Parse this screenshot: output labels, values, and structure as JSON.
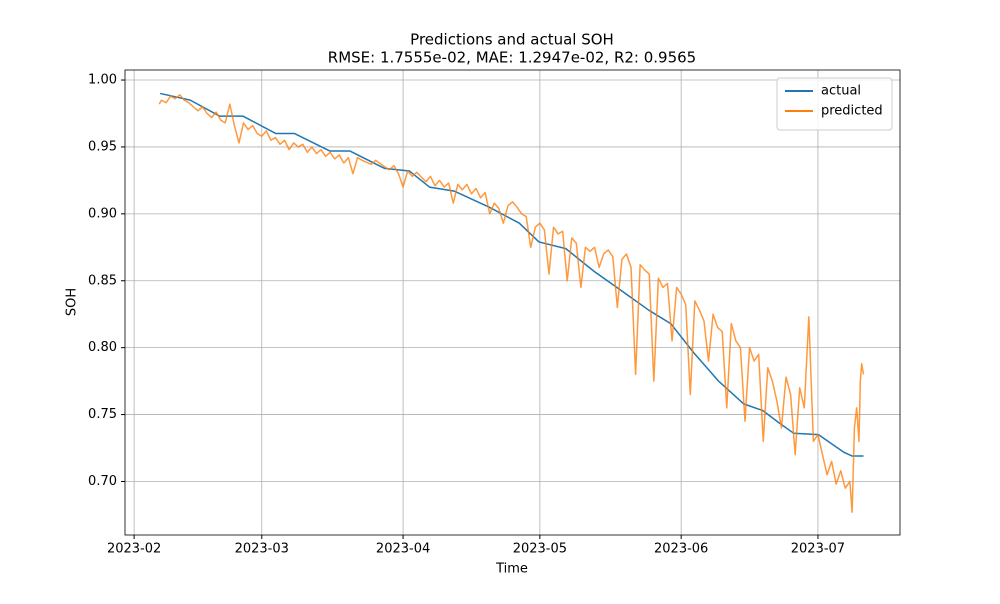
{
  "chart_data": {
    "type": "line",
    "title": "Predictions and actual SOH",
    "subtitle": "RMSE: 1.7555e-02, MAE: 1.2947e-02, R2: 0.9565",
    "x_label": "Time",
    "y_label": "SOH",
    "grid": true,
    "legend": "upper right",
    "xlim": [
      -2,
      168
    ],
    "xticks": [
      {
        "value": 0,
        "label": "2023-02"
      },
      {
        "value": 28,
        "label": "2023-03"
      },
      {
        "value": 59,
        "label": "2023-04"
      },
      {
        "value": 89,
        "label": "2023-05"
      },
      {
        "value": 120,
        "label": "2023-06"
      },
      {
        "value": 150,
        "label": "2023-07"
      }
    ],
    "ylim": [
      0.66,
      1.0075
    ],
    "yticks": [
      {
        "value": 0.7,
        "label": "0.70"
      },
      0.75,
      {
        "value": 0.8,
        "label": "0.80"
      },
      0.85,
      {
        "value": 0.9,
        "label": "0.90"
      },
      0.95,
      {
        "value": 1,
        "label": "1.00"
      }
    ],
    "series": [
      {
        "name": "actual",
        "color": "#1f77b4",
        "x": [
          5.7,
          12.3,
          18.8,
          23.9,
          31.1,
          35.2,
          42.9,
          47.3,
          54.9,
          60.4,
          64.8,
          70.2,
          77.9,
          84.5,
          88.8,
          94.7,
          100.9,
          106.3,
          112.9,
          117.7,
          122.8,
          128.2,
          133.7,
          137.9,
          141.4,
          144.7,
          150.1,
          155.6,
          157.5,
          160
        ],
        "values": [
          0.99,
          0.985,
          0.973,
          0.973,
          0.96,
          0.96,
          0.947,
          0.947,
          0.934,
          0.932,
          0.92,
          0.917,
          0.905,
          0.893,
          0.879,
          0.874,
          0.857,
          0.844,
          0.828,
          0.818,
          0.796,
          0.775,
          0.758,
          0.753,
          0.744,
          0.736,
          0.735,
          0.722,
          0.719,
          0.719
        ]
      },
      {
        "name": "predicted",
        "color": "#ff7f0e",
        "x": [
          5.5,
          6,
          7,
          8,
          9,
          10,
          11,
          12,
          13,
          14,
          15,
          16,
          17,
          18,
          19,
          20,
          21,
          22,
          23,
          24,
          25,
          26,
          27,
          28,
          29,
          30,
          31,
          32,
          33,
          34,
          35,
          36,
          37,
          38,
          39,
          40,
          41,
          42,
          43,
          44,
          45,
          46,
          47,
          48,
          49,
          50,
          52,
          53,
          55,
          56,
          57,
          58,
          59,
          60,
          61,
          62,
          64,
          65,
          66,
          67,
          68,
          69,
          70,
          71,
          72,
          73,
          74,
          75,
          76,
          77,
          78,
          79,
          80,
          81,
          82,
          83,
          84,
          85,
          86,
          87,
          88,
          89,
          90,
          91,
          92,
          93,
          94,
          95,
          96,
          97,
          98,
          99,
          100,
          101,
          102,
          103,
          104,
          105,
          106,
          107,
          108,
          109,
          110,
          111,
          112,
          113,
          114,
          115,
          116,
          117,
          118,
          119,
          120,
          121,
          122,
          123,
          124,
          125,
          126,
          127,
          128,
          129,
          130,
          131,
          132,
          133,
          134,
          135,
          136,
          137,
          138,
          139,
          140,
          141,
          142,
          143,
          144,
          145,
          146,
          147,
          148,
          149,
          150,
          151,
          152,
          153,
          154,
          155,
          156,
          157,
          157.5,
          158,
          158.5,
          159,
          159.3,
          159.6,
          160
        ],
        "values": [
          0.982,
          0.985,
          0.983,
          0.988,
          0.986,
          0.989,
          0.985,
          0.983,
          0.98,
          0.977,
          0.98,
          0.975,
          0.972,
          0.976,
          0.97,
          0.968,
          0.982,
          0.966,
          0.953,
          0.968,
          0.963,
          0.966,
          0.96,
          0.958,
          0.962,
          0.955,
          0.957,
          0.952,
          0.955,
          0.948,
          0.953,
          0.95,
          0.952,
          0.946,
          0.95,
          0.945,
          0.948,
          0.943,
          0.946,
          0.941,
          0.944,
          0.938,
          0.942,
          0.93,
          0.942,
          0.94,
          0.937,
          0.94,
          0.935,
          0.933,
          0.936,
          0.93,
          0.92,
          0.932,
          0.928,
          0.931,
          0.924,
          0.928,
          0.921,
          0.925,
          0.92,
          0.923,
          0.908,
          0.922,
          0.918,
          0.922,
          0.915,
          0.919,
          0.912,
          0.916,
          0.9,
          0.908,
          0.904,
          0.893,
          0.906,
          0.909,
          0.905,
          0.9,
          0.898,
          0.875,
          0.89,
          0.893,
          0.888,
          0.855,
          0.89,
          0.885,
          0.887,
          0.85,
          0.882,
          0.878,
          0.845,
          0.875,
          0.872,
          0.875,
          0.86,
          0.87,
          0.873,
          0.868,
          0.83,
          0.866,
          0.87,
          0.86,
          0.78,
          0.862,
          0.858,
          0.855,
          0.775,
          0.852,
          0.845,
          0.848,
          0.805,
          0.845,
          0.84,
          0.832,
          0.765,
          0.835,
          0.828,
          0.82,
          0.79,
          0.825,
          0.815,
          0.812,
          0.755,
          0.818,
          0.805,
          0.8,
          0.745,
          0.8,
          0.79,
          0.795,
          0.73,
          0.785,
          0.775,
          0.76,
          0.74,
          0.778,
          0.765,
          0.72,
          0.77,
          0.755,
          0.823,
          0.73,
          0.735,
          0.72,
          0.705,
          0.715,
          0.698,
          0.708,
          0.695,
          0.7,
          0.677,
          0.74,
          0.755,
          0.73,
          0.775,
          0.788,
          0.78
        ]
      }
    ]
  }
}
